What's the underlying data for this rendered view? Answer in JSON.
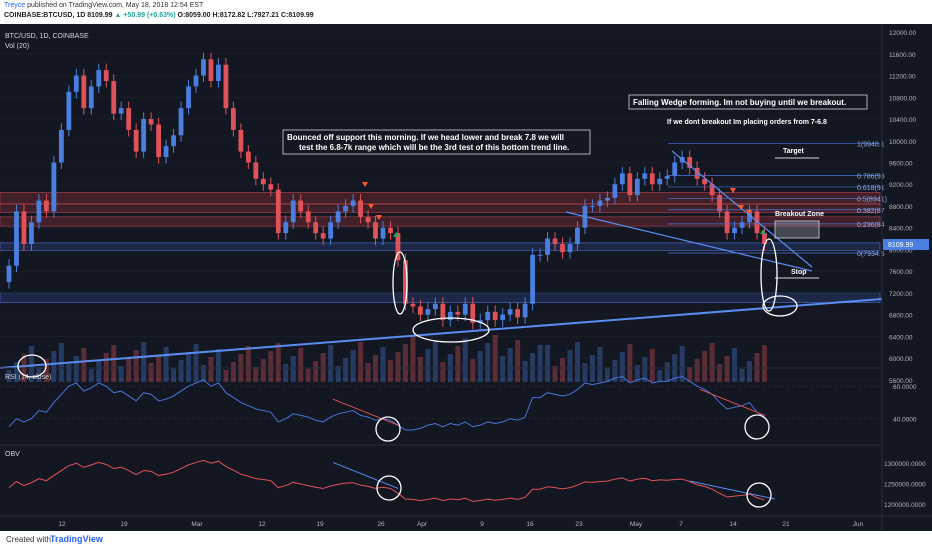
{
  "header": {
    "author": "Treyce",
    "published_text": "published on TradingView.com, May 18, 2018 12:54 EST",
    "symbol": "COINBASE:BTCUSD, 1D",
    "last": "8109.99",
    "change": "▲ +50.99 (+0.63%)",
    "ohlc": "O:8059.00 H:8172.82 L:7927.21 C:8109.99"
  },
  "panels": {
    "main_title": "BTC/USD, 1D, COINBASE",
    "volume_label": "Vol (20)",
    "rsi_label": "RSI (14, close)",
    "obv_label": "OBV"
  },
  "annotations": {
    "wedge": "Falling Wedge forming. Im not buying until we breakout.",
    "orders": "If we dont breakout Im placing orders from 7-6.8",
    "support_line1": "Bounced off support this morning. If we head lower and break 7.8 we will",
    "support_line2": "test the 6.8-7k range which will be the 3rd test of this bottom trend line.",
    "target": "Target",
    "breakout_zone": "Breakout Zone",
    "stop": "Stop"
  },
  "price_tag": "8109.99",
  "footer": {
    "created": "Created with",
    "brand": "TradingView"
  },
  "colors": {
    "background": "#131722",
    "up": "#4a7fe0",
    "down": "#e0525a",
    "rsi_line": "#4a74d9",
    "obv_line": "#e0525a",
    "trend_line": "#5b8cf0",
    "zone_red": "#7a2d33",
    "zone_blue": "#2a3f7a"
  },
  "chart_data": {
    "type": "candlestick",
    "title": "BTC/USD, 1D, COINBASE",
    "x_tick_labels": [
      "12",
      "19",
      "Mar",
      "12",
      "19",
      "26",
      "Apr",
      "9",
      "16",
      "23",
      "May",
      "7",
      "14",
      "21",
      "Jun"
    ],
    "y_axis_labels": [
      "12000.00",
      "11600.00",
      "11200.00",
      "10800.00",
      "10400.00",
      "10000.00",
      "9600.00",
      "9200.00",
      "8800.00",
      "8400.00",
      "8000.00",
      "7600.00",
      "7200.00",
      "6800.00",
      "6400.00",
      "6000.00",
      "5600.00"
    ],
    "ylim": [
      5560,
      12180
    ],
    "last_close": 8109.99,
    "closes": [
      7700,
      8700,
      8100,
      8500,
      8900,
      8700,
      9600,
      10200,
      10900,
      11200,
      10600,
      11000,
      11300,
      11100,
      10500,
      10600,
      10200,
      9800,
      10400,
      10300,
      9700,
      9900,
      10100,
      10600,
      11000,
      11200,
      11500,
      11100,
      11400,
      10600,
      10200,
      9800,
      9600,
      9300,
      9200,
      9100,
      8300,
      8500,
      8900,
      8700,
      8500,
      8300,
      8200,
      8500,
      8700,
      8800,
      8900,
      8600,
      8500,
      8200,
      8400,
      8300,
      7800,
      7000,
      6950,
      6800,
      6900,
      7000,
      6700,
      6850,
      6800,
      7000,
      6650,
      6700,
      6850,
      6700,
      6800,
      6900,
      6750,
      7000,
      7900,
      7900,
      8200,
      8100,
      7950,
      8100,
      8400,
      8800,
      8800,
      8900,
      8950,
      9200,
      9400,
      9000,
      9300,
      9400,
      9200,
      9300,
      9350,
      9600,
      9700,
      9500,
      9300,
      9200,
      9000,
      8700,
      8300,
      8400,
      8500,
      8700,
      8300,
      8100
    ],
    "rsi": {
      "name": "RSI (14, close)",
      "ylim": [
        25,
        70
      ],
      "ticks": [
        40,
        60
      ],
      "tick_labels": [
        "40.0000",
        "60.0000"
      ],
      "values": [
        35,
        40,
        38,
        40,
        45,
        44,
        50,
        55,
        60,
        62,
        57,
        59,
        62,
        60,
        56,
        57,
        54,
        51,
        56,
        55,
        51,
        52,
        54,
        57,
        60,
        62,
        64,
        60,
        62,
        56,
        53,
        50,
        48,
        46,
        45,
        44,
        38,
        40,
        43,
        42,
        41,
        39,
        38,
        41,
        43,
        44,
        45,
        42,
        41,
        39,
        40,
        39,
        36,
        33,
        33,
        34,
        36,
        37,
        35,
        37,
        36,
        38,
        35,
        36,
        38,
        37,
        38,
        40,
        39,
        41,
        53,
        53,
        56,
        55,
        54,
        55,
        58,
        62,
        61,
        62,
        63,
        65,
        66,
        62,
        64,
        65,
        62,
        63,
        63,
        65,
        66,
        63,
        60,
        58,
        55,
        50,
        46,
        47,
        48,
        50,
        44,
        41
      ]
    },
    "obv": {
      "name": "OBV",
      "ylim": [
        1175000,
        1340000
      ],
      "ticks": [
        1200000,
        1250000,
        1300000
      ],
      "tick_labels": [
        "1200000.0000",
        "1250000.0000",
        "1300000.0000"
      ],
      "values": [
        1240000,
        1255000,
        1245000,
        1252000,
        1262000,
        1257000,
        1270000,
        1282000,
        1294000,
        1300000,
        1290000,
        1296000,
        1302000,
        1297000,
        1287000,
        1290000,
        1282000,
        1272000,
        1282000,
        1280000,
        1270000,
        1273000,
        1278000,
        1287000,
        1296000,
        1302000,
        1307000,
        1300000,
        1305000,
        1292000,
        1283000,
        1273000,
        1268000,
        1262000,
        1260000,
        1257000,
        1240000,
        1245000,
        1253000,
        1249000,
        1245000,
        1241000,
        1238000,
        1244000,
        1248000,
        1251000,
        1252000,
        1246000,
        1243000,
        1238000,
        1241000,
        1238000,
        1226000,
        1212000,
        1211000,
        1208000,
        1211000,
        1214000,
        1208000,
        1212000,
        1210000,
        1214000,
        1206000,
        1208000,
        1212000,
        1209000,
        1211000,
        1214000,
        1211000,
        1216000,
        1236000,
        1236000,
        1242000,
        1240000,
        1237000,
        1240000,
        1246000,
        1254000,
        1253000,
        1255000,
        1256000,
        1261000,
        1264000,
        1256000,
        1261000,
        1263000,
        1257000,
        1259000,
        1258000,
        1260000,
        1261000,
        1255000,
        1247000,
        1243000,
        1236000,
        1226000,
        1217000,
        1219000,
        1221000,
        1224000,
        1215000,
        1210000
      ]
    },
    "fib_levels": [
      {
        "label": "1(9948.1",
        "price": 9948
      },
      {
        "label": "0.786(93",
        "price": 9360
      },
      {
        "label": "0.618(91",
        "price": 9150
      },
      {
        "label": "0.5(8941)",
        "price": 8941
      },
      {
        "label": "0.382(87",
        "price": 8730
      },
      {
        "label": "0.236(84",
        "price": 8470
      },
      {
        "label": "0(7934.5",
        "price": 7934
      }
    ]
  }
}
